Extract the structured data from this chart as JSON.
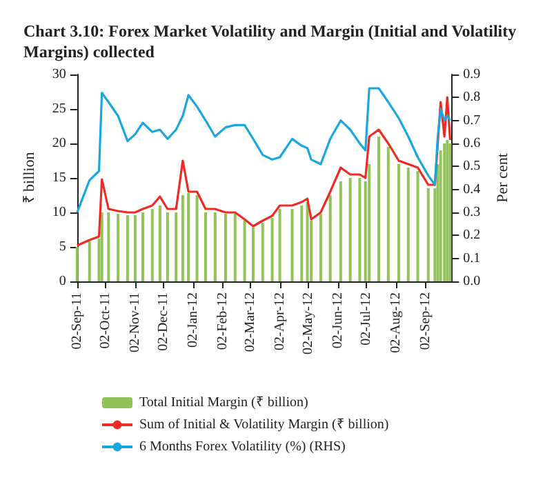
{
  "chart_data": {
    "type": "bar",
    "title": "Chart 3.10: Forex Market Volatility and Margin (Initial and Volatility Margins) collected",
    "ylabel": "₹ billion",
    "y2label": "Per cent",
    "x": [
      "2011-09-02",
      "2011-09-15",
      "2011-09-25",
      "2011-09-28",
      "2011-10-05",
      "2011-10-15",
      "2011-10-25",
      "2011-11-02",
      "2011-11-10",
      "2011-11-20",
      "2011-11-28",
      "2011-12-06",
      "2011-12-15",
      "2011-12-22",
      "2011-12-28",
      "2012-01-06",
      "2012-01-15",
      "2012-01-25",
      "2012-02-05",
      "2012-02-15",
      "2012-02-25",
      "2012-03-05",
      "2012-03-15",
      "2012-03-25",
      "2012-04-02",
      "2012-04-15",
      "2012-04-25",
      "2012-05-01",
      "2012-05-05",
      "2012-05-15",
      "2012-05-25",
      "2012-06-05",
      "2012-06-15",
      "2012-06-25",
      "2012-07-01",
      "2012-07-05",
      "2012-07-15",
      "2012-07-25",
      "2012-08-05",
      "2012-08-15",
      "2012-08-25",
      "2012-09-05",
      "2012-09-12",
      "2012-09-15",
      "2012-09-18",
      "2012-09-22",
      "2012-09-25",
      "2012-09-28"
    ],
    "series": [
      {
        "name": "Total Initial Margin (₹ billion)",
        "color": "#92c35a",
        "values": [
          5,
          5.8,
          6.2,
          10,
          10,
          9.8,
          9.6,
          9.6,
          10,
          10.5,
          11,
          10,
          10,
          12.5,
          12.8,
          12.5,
          10,
          10,
          9.8,
          9.8,
          8.8,
          7.8,
          8.5,
          9.2,
          10.5,
          10.5,
          11,
          11.5,
          8.8,
          9.8,
          12.5,
          14.5,
          15,
          15,
          14.5,
          17,
          21,
          19.5,
          17,
          16.5,
          16,
          13.5,
          13.5,
          17,
          19,
          20,
          20.5,
          20
        ]
      },
      {
        "name": "Sum of Initial & Volatility Margin (₹ billion)",
        "type": "line",
        "color": "#ee2a24",
        "values": [
          5.2,
          6,
          6.5,
          14.8,
          10.5,
          10.2,
          10,
          10,
          10.5,
          11,
          12.3,
          10.5,
          10.5,
          17.5,
          13,
          13,
          10.5,
          10.5,
          10,
          10,
          9,
          8,
          8.8,
          9.5,
          11,
          11,
          11.5,
          12,
          9,
          10,
          13,
          16.5,
          15.5,
          15.5,
          15,
          21,
          22,
          20,
          17.5,
          17,
          16.5,
          14,
          14,
          20,
          26,
          21,
          26.7,
          20.5
        ]
      },
      {
        "name": "6 Months Forex Volatility (%) (RHS)",
        "type": "line",
        "axis": "y2",
        "color": "#1aa7e0",
        "values": [
          0.3,
          0.44,
          0.48,
          0.82,
          0.78,
          0.72,
          0.61,
          0.64,
          0.69,
          0.65,
          0.66,
          0.62,
          0.66,
          0.72,
          0.81,
          0.76,
          0.7,
          0.63,
          0.67,
          0.68,
          0.68,
          0.62,
          0.55,
          0.53,
          0.54,
          0.62,
          0.59,
          0.58,
          0.53,
          0.51,
          0.62,
          0.7,
          0.66,
          0.6,
          0.57,
          0.84,
          0.84,
          0.78,
          0.71,
          0.63,
          0.54,
          0.46,
          0.42,
          0.63,
          0.75,
          0.7,
          0.72,
          0.7
        ]
      }
    ],
    "xlim": [
      "2011-09-02",
      "2012-09-30"
    ],
    "xticks": [
      {
        "value": "2011-09-02",
        "label": "02-Sep-11"
      },
      {
        "value": "2011-10-02",
        "label": "02-Oct-11"
      },
      {
        "value": "2011-11-02",
        "label": "02-Nov-11"
      },
      {
        "value": "2011-12-02",
        "label": "02-Dec-11"
      },
      {
        "value": "2012-01-02",
        "label": "02-Jan-12"
      },
      {
        "value": "2012-02-02",
        "label": "02-Feb-12"
      },
      {
        "value": "2012-03-02",
        "label": "02-Mar-12"
      },
      {
        "value": "2012-04-02",
        "label": "02-Apr-12"
      },
      {
        "value": "2012-05-02",
        "label": "02-May-12"
      },
      {
        "value": "2012-06-02",
        "label": "02-Jun-12"
      },
      {
        "value": "2012-07-02",
        "label": "02-Jul-12"
      },
      {
        "value": "2012-08-02",
        "label": "02-Aug-12"
      },
      {
        "value": "2012-09-02",
        "label": "02-Sep-12"
      }
    ],
    "ylim": [
      0,
      30
    ],
    "yticks": [
      0,
      5,
      10,
      15,
      20,
      25,
      30
    ],
    "y2lim": [
      0,
      0.9
    ],
    "y2ticks": [
      {
        "value": 0,
        "label": "0.0"
      },
      {
        "value": 0.1,
        "label": "0.1"
      },
      {
        "value": 0.2,
        "label": "0.2"
      },
      {
        "value": 0.3,
        "label": "0.3"
      },
      {
        "value": 0.4,
        "label": "0.4"
      },
      {
        "value": 0.5,
        "label": "0.5"
      },
      {
        "value": 0.6,
        "label": "0.6"
      },
      {
        "value": 0.7,
        "label": "0.7"
      },
      {
        "value": 0.8,
        "label": "0.8"
      },
      {
        "value": 0.9,
        "label": "0.9"
      }
    ],
    "grid": false,
    "legend": "bottom",
    "marker": "none"
  }
}
